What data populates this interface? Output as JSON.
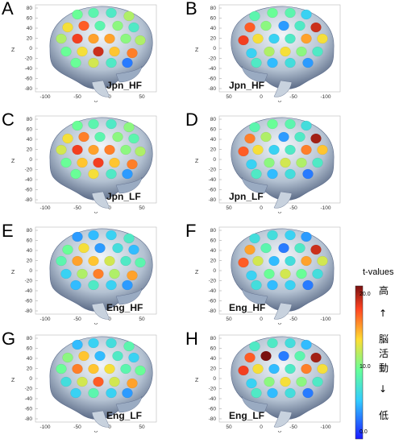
{
  "panels": [
    {
      "letter": "A",
      "condition": "Jpn_HF",
      "view": "left",
      "electrodes": [
        10,
        9,
        8,
        12,
        14,
        18,
        9,
        11,
        8,
        12,
        19,
        16,
        16,
        11,
        12,
        10,
        14,
        20,
        15,
        17,
        10,
        13,
        8,
        3
      ]
    },
    {
      "letter": "B",
      "condition": "Jpn_HF",
      "view": "right",
      "electrodes": [
        6,
        9,
        10,
        9,
        20,
        8,
        4,
        11,
        18,
        14,
        16,
        8,
        6,
        14,
        19,
        8,
        11,
        14,
        12,
        6,
        4,
        7,
        5,
        8
      ]
    },
    {
      "letter": "C",
      "condition": "Jpn_LF",
      "view": "left",
      "electrodes": [
        10,
        9,
        8,
        11,
        14,
        17,
        9,
        11,
        9,
        13,
        19,
        16,
        17,
        11,
        12,
        10,
        15,
        19,
        15,
        17,
        10,
        14,
        8,
        4
      ]
    },
    {
      "letter": "D",
      "condition": "Jpn_LF",
      "view": "right",
      "electrodes": [
        7,
        9,
        10,
        9,
        21,
        8,
        4,
        12,
        17,
        15,
        17,
        8,
        6,
        14,
        18,
        8,
        12,
        13,
        11,
        6,
        3,
        7,
        5,
        8
      ]
    },
    {
      "letter": "E",
      "condition": "Eng_HF",
      "view": "left",
      "electrodes": [
        4,
        5,
        6,
        8,
        10,
        14,
        4,
        7,
        5,
        9,
        16,
        15,
        13,
        8,
        9,
        6,
        12,
        17,
        12,
        16,
        5,
        8,
        6,
        4
      ]
    },
    {
      "letter": "F",
      "condition": "Eng_HF",
      "view": "right",
      "electrodes": [
        4,
        6,
        7,
        7,
        20,
        8,
        3,
        9,
        16,
        13,
        16,
        7,
        5,
        13,
        18,
        7,
        10,
        13,
        10,
        6,
        3,
        6,
        5,
        7
      ]
    },
    {
      "letter": "G",
      "condition": "Eng_LF",
      "view": "left",
      "electrodes": [
        5,
        6,
        7,
        9,
        11,
        15,
        5,
        8,
        6,
        10,
        17,
        15,
        14,
        9,
        10,
        7,
        13,
        18,
        13,
        16,
        6,
        9,
        6,
        4
      ]
    },
    {
      "letter": "H",
      "condition": "Eng_LF",
      "view": "right",
      "electrodes": [
        5,
        7,
        8,
        8,
        21,
        9,
        3,
        22,
        18,
        14,
        17,
        8,
        5,
        14,
        19,
        8,
        11,
        14,
        11,
        6,
        3,
        7,
        5,
        8
      ]
    }
  ],
  "axes": {
    "z_label": "Z",
    "y_label": "Y",
    "z_ticks": [
      "80",
      "60",
      "40",
      "20",
      "0",
      "-20",
      "-40",
      "-60",
      "-80"
    ],
    "y_ticks_left": [
      "-100",
      "-50",
      "0",
      "50"
    ],
    "y_ticks_right": [
      "50",
      "0",
      "-50",
      "-100"
    ]
  },
  "colorbar": {
    "title": "t-values",
    "min": 0,
    "max": 22,
    "ticks": [
      "20.0",
      "10.0",
      "0.0"
    ],
    "labels": {
      "high": "高",
      "up_arrow": "↑",
      "brain": "脳",
      "activity": "活",
      "action": "動",
      "down_arrow": "↓",
      "low": "低"
    },
    "colors": {
      "c0": "#1a1aff",
      "c1": "#33ccff",
      "c2": "#66ff99",
      "c3": "#ffdd33",
      "c4": "#ff4422",
      "c5": "#7a1010"
    }
  }
}
